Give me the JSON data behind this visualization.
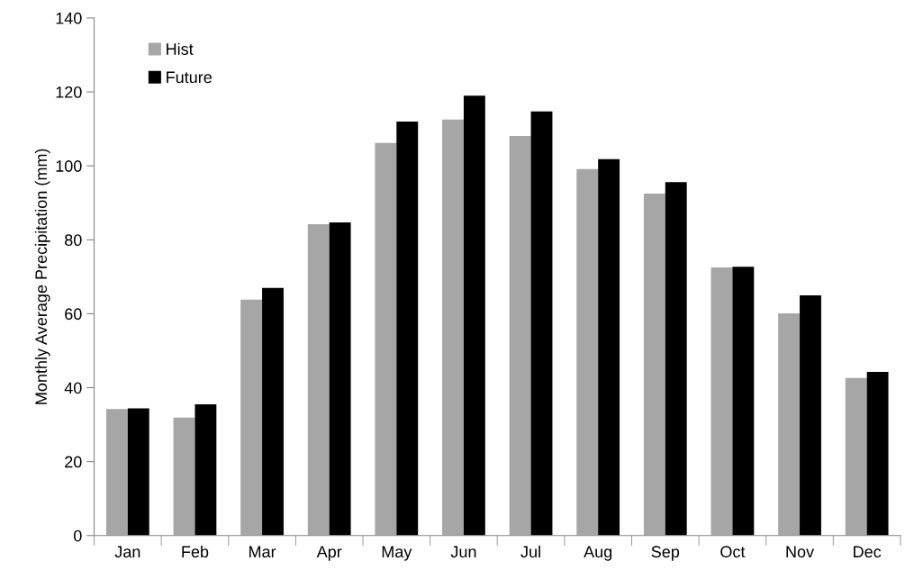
{
  "chart_data": {
    "type": "bar",
    "ylabel": "Monthly Average Precipitation (mm)",
    "categories": [
      "Jan",
      "Feb",
      "Mar",
      "Apr",
      "May",
      "Jun",
      "Jul",
      "Aug",
      "Sep",
      "Oct",
      "Nov",
      "Dec"
    ],
    "series": [
      {
        "name": "Hist",
        "color": "#a6a6a6",
        "values": [
          34.2,
          31.9,
          63.8,
          84.2,
          106.2,
          112.5,
          108.1,
          99.1,
          92.5,
          72.5,
          60.1,
          42.6
        ]
      },
      {
        "name": "Future",
        "color": "#000000",
        "values": [
          34.4,
          35.5,
          67,
          84.7,
          112,
          119,
          114.7,
          101.8,
          95.6,
          72.7,
          65,
          44.3
        ]
      }
    ],
    "ylim": [
      0,
      140
    ],
    "yticks": [
      0,
      20,
      40,
      60,
      80,
      100,
      120,
      140
    ],
    "grid": false,
    "legend": "top left"
  }
}
